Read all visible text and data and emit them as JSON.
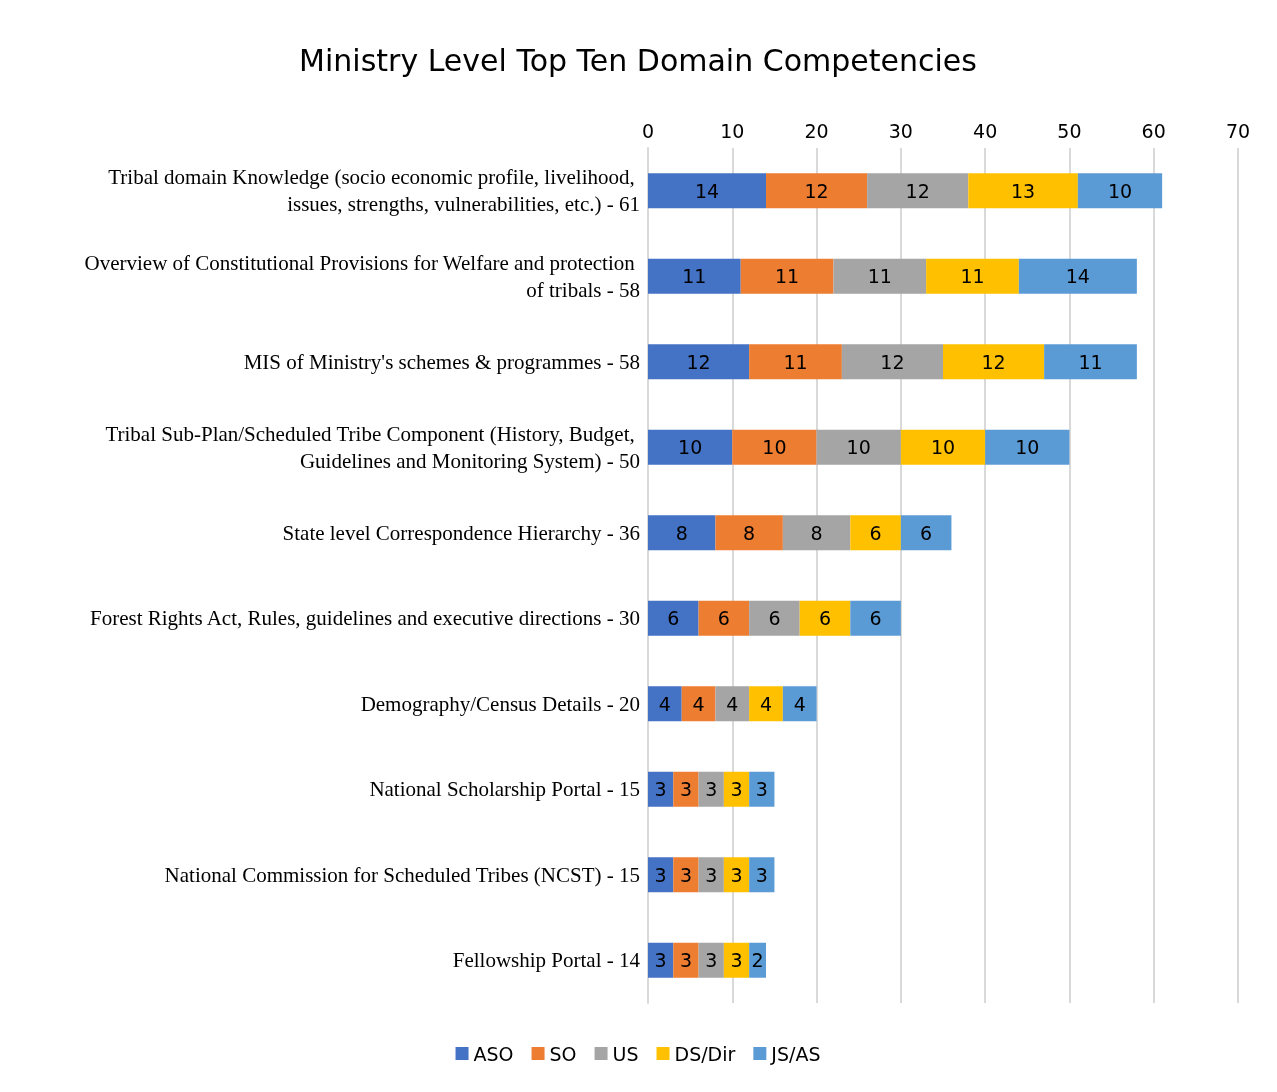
{
  "chart_data": {
    "type": "bar",
    "orientation": "horizontal",
    "stacked": true,
    "title": "Ministry Level Top Ten Domain Competencies",
    "categories": [
      "Tribal domain Knowledge (socio economic profile, livelihood, issues, strengths, vulnerabilities, etc.) - 61",
      "Overview of Constitutional Provisions for Welfare and protection of tribals - 58",
      "MIS of Ministry's schemes & programmes - 58",
      "Tribal Sub-Plan/Scheduled Tribe Component (History, Budget, Guidelines and Monitoring System) - 50",
      "State level Correspondence Hierarchy - 36",
      "Forest Rights Act, Rules, guidelines and executive directions - 30",
      "Demography/Census Details - 20",
      "National Scholarship Portal - 15",
      "National Commission for Scheduled Tribes (NCST) - 15",
      "Fellowship Portal - 14"
    ],
    "series": [
      {
        "name": "ASO",
        "color": "#4472c4",
        "values": [
          14,
          11,
          12,
          10,
          8,
          6,
          4,
          3,
          3,
          3
        ]
      },
      {
        "name": "SO",
        "color": "#ed7d31",
        "values": [
          12,
          11,
          11,
          10,
          8,
          6,
          4,
          3,
          3,
          3
        ]
      },
      {
        "name": "US",
        "color": "#a5a5a5",
        "values": [
          12,
          11,
          12,
          10,
          8,
          6,
          4,
          3,
          3,
          3
        ]
      },
      {
        "name": "DS/Dir",
        "color": "#ffc000",
        "values": [
          13,
          11,
          12,
          10,
          6,
          6,
          4,
          3,
          3,
          3
        ]
      },
      {
        "name": "JS/AS",
        "color": "#5b9bd5",
        "values": [
          10,
          14,
          11,
          10,
          6,
          6,
          4,
          3,
          3,
          2
        ]
      }
    ],
    "xlim": [
      0,
      70
    ],
    "xticks": [
      0,
      10,
      20,
      30,
      40,
      50,
      60,
      70
    ],
    "grid": "x",
    "legend": "bottom",
    "data_labels": true
  }
}
